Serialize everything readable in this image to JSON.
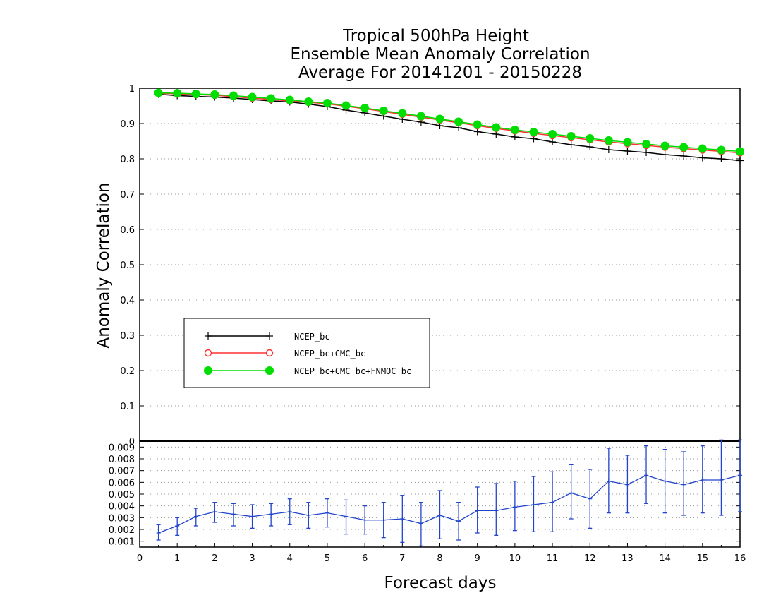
{
  "chart_data": [
    {
      "type": "line",
      "title": [
        "Tropical 500hPa Height",
        "Ensemble Mean Anomaly Correlation",
        "Average For 20141201 - 20150228"
      ],
      "xlabel": "Forecast days",
      "ylabel": "Anomaly Correlation",
      "xlim": [
        0,
        16
      ],
      "ylim": [
        0,
        1
      ],
      "xticks": [
        "0",
        "1",
        "2",
        "3",
        "4",
        "5",
        "6",
        "7",
        "8",
        "9",
        "10",
        "11",
        "12",
        "13",
        "14",
        "15",
        "16"
      ],
      "yticks": [
        "0",
        "0.1",
        "0.2",
        "0.3",
        "0.4",
        "0.5",
        "0.6",
        "0.7",
        "0.8",
        "0.9",
        "1"
      ],
      "grid": true,
      "legend": "lower-left",
      "x": [
        0.5,
        1,
        1.5,
        2,
        2.5,
        3,
        3.5,
        4,
        4.5,
        5,
        5.5,
        6,
        6.5,
        7,
        7.5,
        8,
        8.5,
        9,
        9.5,
        10,
        10.5,
        11,
        11.5,
        12,
        12.5,
        13,
        13.5,
        14,
        14.5,
        15,
        15.5,
        16
      ],
      "series": [
        {
          "name": "NCEP_bc",
          "color": "#000000",
          "marker": "plus",
          "values": [
            0.983,
            0.979,
            0.977,
            0.975,
            0.972,
            0.968,
            0.964,
            0.961,
            0.955,
            0.948,
            0.938,
            0.93,
            0.921,
            0.912,
            0.904,
            0.894,
            0.888,
            0.877,
            0.87,
            0.862,
            0.857,
            0.848,
            0.84,
            0.834,
            0.826,
            0.822,
            0.818,
            0.812,
            0.808,
            0.803,
            0.8,
            0.795
          ]
        },
        {
          "name": "NCEP_bc+CMC_bc",
          "color": "#ff3030",
          "marker": "open-circle",
          "values": [
            0.986,
            0.984,
            0.982,
            0.98,
            0.976,
            0.972,
            0.968,
            0.964,
            0.96,
            0.956,
            0.949,
            0.942,
            0.934,
            0.926,
            0.918,
            0.91,
            0.902,
            0.894,
            0.886,
            0.879,
            0.872,
            0.866,
            0.86,
            0.854,
            0.848,
            0.843,
            0.838,
            0.833,
            0.829,
            0.825,
            0.821,
            0.817
          ]
        },
        {
          "name": "NCEP_bc+CMC_bc+FNMOC_bc",
          "color": "#00dd00",
          "marker": "filled-circle",
          "values": [
            0.987,
            0.986,
            0.984,
            0.982,
            0.979,
            0.975,
            0.971,
            0.967,
            0.962,
            0.958,
            0.951,
            0.944,
            0.936,
            0.929,
            0.921,
            0.913,
            0.905,
            0.897,
            0.889,
            0.882,
            0.876,
            0.87,
            0.864,
            0.858,
            0.852,
            0.847,
            0.842,
            0.837,
            0.833,
            0.829,
            0.825,
            0.821
          ]
        }
      ]
    },
    {
      "type": "line",
      "xlim": [
        0,
        16
      ],
      "ylim": [
        0.0005,
        0.0095
      ],
      "yticks": [
        "0.001",
        "0.002",
        "0.003",
        "0.004",
        "0.005",
        "0.006",
        "0.007",
        "0.008",
        "0.009"
      ],
      "grid": true,
      "x": [
        0.5,
        1,
        1.5,
        2,
        2.5,
        3,
        3.5,
        4,
        4.5,
        5,
        5.5,
        6,
        6.5,
        7,
        7.5,
        8,
        8.5,
        9,
        9.5,
        10,
        10.5,
        11,
        11.5,
        12,
        12.5,
        13,
        13.5,
        14,
        14.5,
        15,
        15.5,
        16
      ],
      "series": [
        {
          "color": "#2244cc",
          "values": [
            0.0017,
            0.0023,
            0.0031,
            0.0035,
            0.0033,
            0.0031,
            0.0033,
            0.0035,
            0.0032,
            0.0034,
            0.0031,
            0.0028,
            0.0028,
            0.0029,
            0.0025,
            0.0032,
            0.0027,
            0.0036,
            0.0036,
            0.0039,
            0.0041,
            0.0043,
            0.0051,
            0.0046,
            0.0061,
            0.0058,
            0.0066,
            0.0061,
            0.0058,
            0.0062,
            0.0062,
            0.0066
          ],
          "error_low": [
            0.0011,
            0.0015,
            0.0023,
            0.0026,
            0.0023,
            0.0021,
            0.0023,
            0.0024,
            0.0021,
            0.0022,
            0.0016,
            0.0016,
            0.0013,
            0.0009,
            0.0006,
            0.0012,
            0.0011,
            0.0017,
            0.0015,
            0.0019,
            0.0018,
            0.0018,
            0.0029,
            0.0021,
            0.0034,
            0.0034,
            0.0042,
            0.0034,
            0.0032,
            0.0034,
            0.0032,
            0.0035
          ],
          "error_high": [
            0.0024,
            0.003,
            0.0038,
            0.0043,
            0.0042,
            0.0041,
            0.0042,
            0.0046,
            0.0043,
            0.0046,
            0.0045,
            0.004,
            0.0043,
            0.0049,
            0.0043,
            0.0053,
            0.0043,
            0.0056,
            0.0059,
            0.0061,
            0.0065,
            0.0069,
            0.0075,
            0.0071,
            0.0089,
            0.0083,
            0.0091,
            0.0088,
            0.0086,
            0.0091,
            0.0096,
            0.0096
          ]
        }
      ]
    }
  ]
}
